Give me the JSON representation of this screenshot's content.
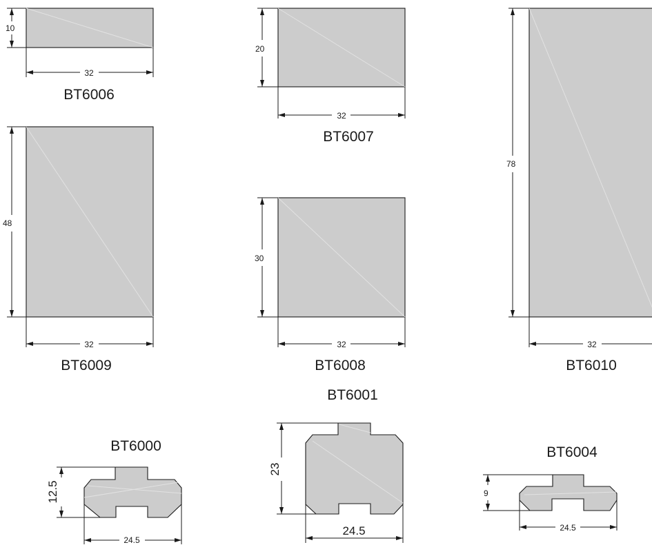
{
  "parts": [
    {
      "code": "BT6006",
      "width": "32",
      "height": "10"
    },
    {
      "code": "BT6007",
      "width": "32",
      "height": "20"
    },
    {
      "code": "BT6009",
      "width": "32",
      "height": "48"
    },
    {
      "code": "BT6008",
      "width": "32",
      "height": "30"
    },
    {
      "code": "BT6010",
      "width": "32",
      "height": "78"
    },
    {
      "code": "BT6000",
      "width": "24.5",
      "height": "12.5"
    },
    {
      "code": "BT6001",
      "width": "24.5",
      "height": "23"
    },
    {
      "code": "BT6004",
      "width": "24.5",
      "height": "9"
    }
  ]
}
